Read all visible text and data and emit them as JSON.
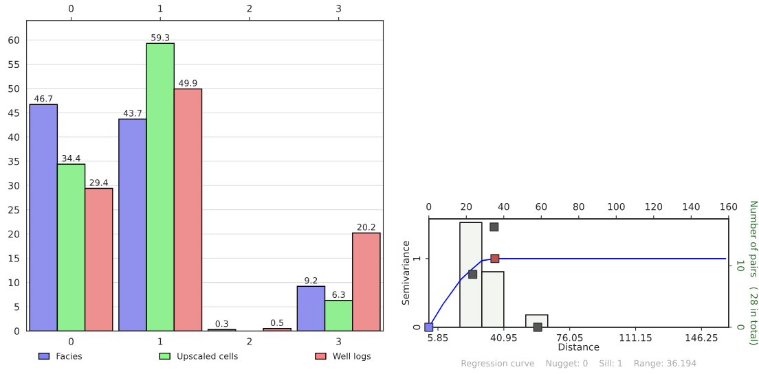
{
  "chart_data": [
    {
      "type": "bar",
      "categories": [
        "0",
        "1",
        "2",
        "3"
      ],
      "ylim": [
        0,
        64
      ],
      "yticks": [
        0,
        5,
        10,
        15,
        20,
        25,
        30,
        35,
        40,
        45,
        50,
        55,
        60
      ],
      "grid": "y",
      "legend": "bottom",
      "series": [
        {
          "name": "Facies",
          "color": "#8080ff",
          "values": [
            46.7,
            43.7,
            0.3,
            9.2
          ],
          "value_labels": [
            "46.7",
            "43.7",
            "0.3",
            "9.2"
          ]
        },
        {
          "name": "Upscaled cells",
          "color": "#80ff80",
          "values": [
            34.4,
            59.3,
            null,
            6.3
          ],
          "value_labels": [
            "34.4",
            "59.3",
            null,
            "6.3"
          ]
        },
        {
          "name": "Well logs",
          "color": "#ff8080",
          "values": [
            29.4,
            49.9,
            0.5,
            20.2
          ],
          "value_labels": [
            "29.4",
            "49.9",
            "0.5",
            "20.2"
          ]
        }
      ]
    },
    {
      "type": "scatter",
      "xlabel": "Distance",
      "ylabel": "Semivariance",
      "y2label": "Number of pairs   ( 28 in total)",
      "xlim": [
        1.0,
        160.7
      ],
      "xticks": [
        5.85,
        40.95,
        76.05,
        111.15,
        146.25
      ],
      "x2lim": [
        0,
        160
      ],
      "x2ticks": [
        0,
        20,
        40,
        60,
        80,
        100,
        120,
        140,
        160
      ],
      "ylim": [
        0,
        1.58
      ],
      "yticks": [
        0,
        1
      ],
      "y2lim": [
        0,
        17.6
      ],
      "y2ticks": [
        0,
        10
      ],
      "marker": "square",
      "grid": false,
      "annotations": [
        "Regression curve    Nugget: 0    Sill: 1    Range: 36.194"
      ],
      "series": [
        {
          "type": "histogram",
          "axis": "y2",
          "color": "#f3f5f1",
          "bins": [
            17.55,
            29.25,
            40.95,
            52.65,
            64.35
          ],
          "values": [
            17,
            9,
            0,
            2
          ]
        },
        {
          "type": "line",
          "color": "#0000ff",
          "marker": "none",
          "x": [
            1.0,
            8.4,
            18.2,
            23.7,
            29.2,
            36.0,
            159.1
          ],
          "values": [
            0,
            0.33,
            0.7,
            0.84,
            0.97,
            1.0,
            1.0
          ]
        },
        {
          "type": "scatter",
          "color": "#555555",
          "x": [
            24.4,
            35.8,
            59.0
          ],
          "values": [
            0.77,
            1.46,
            0
          ]
        },
        {
          "type": "scatter",
          "color": "#7f7fff",
          "x": [
            1.0
          ],
          "values": [
            0
          ]
        },
        {
          "type": "scatter",
          "color": "#c0504d",
          "x": [
            36.2
          ],
          "values": [
            1.0
          ]
        }
      ]
    }
  ]
}
